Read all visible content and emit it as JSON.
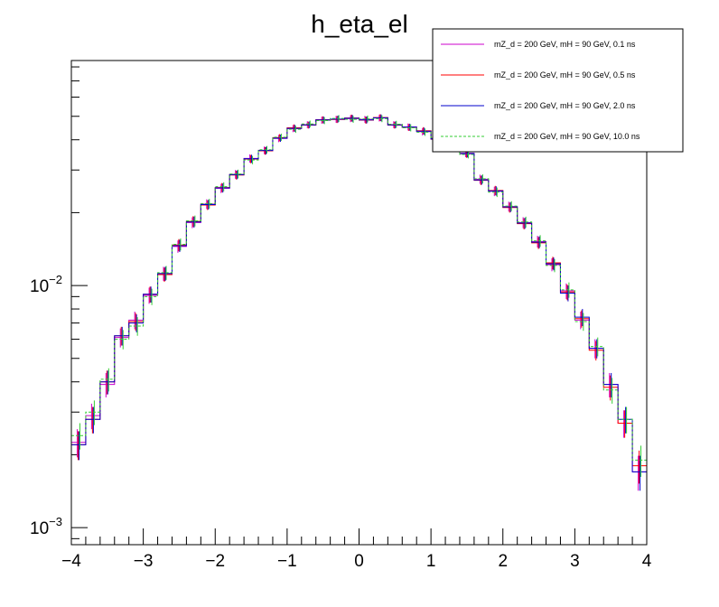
{
  "chart_data": {
    "type": "line",
    "title": "h_eta_el",
    "xlabel": "",
    "ylabel": "",
    "xlim": [
      -4,
      4
    ],
    "ylim": [
      0.00085,
      0.085
    ],
    "y_scale": "log",
    "grid": false,
    "legend_placement": "top-right",
    "x_ticks": [
      {
        "value": -4,
        "label": "−4"
      },
      {
        "value": -3,
        "label": "−3"
      },
      {
        "value": -2,
        "label": "−2"
      },
      {
        "value": -1,
        "label": "−1"
      },
      {
        "value": 0,
        "label": "0"
      },
      {
        "value": 1,
        "label": "1"
      },
      {
        "value": 2,
        "label": "2"
      },
      {
        "value": 3,
        "label": "3"
      },
      {
        "value": 4,
        "label": "4"
      }
    ],
    "y_ticks": [
      {
        "value": 0.01,
        "base": "10",
        "exponent": "−2"
      },
      {
        "value": 0.001,
        "base": "10",
        "exponent": "−3"
      }
    ],
    "bin_edges": [
      -4.0,
      -3.8,
      -3.6,
      -3.4,
      -3.2,
      -3.0,
      -2.8,
      -2.6,
      -2.4,
      -2.2,
      -2.0,
      -1.8,
      -1.6,
      -1.4,
      -1.2,
      -1.0,
      -0.8,
      -0.6,
      -0.4,
      -0.2,
      0.0,
      0.2,
      0.4,
      0.6,
      0.8,
      1.0,
      1.2,
      1.4,
      1.6,
      1.8,
      2.0,
      2.2,
      2.4,
      2.6,
      2.8,
      3.0,
      3.2,
      3.4,
      3.6,
      3.8,
      4.0
    ],
    "series": [
      {
        "name": "mZ_d = 200 GeV, mH = 90 GeV, 0.1 ns",
        "color": "#cc00cc",
        "dashed": false,
        "values": [
          0.00225,
          0.0029,
          0.0039,
          0.0061,
          0.0072,
          0.0091,
          0.0112,
          0.0145,
          0.0182,
          0.0217,
          0.0252,
          0.0288,
          0.0335,
          0.0362,
          0.0405,
          0.0445,
          0.0462,
          0.0482,
          0.0486,
          0.0489,
          0.0486,
          0.0492,
          0.0462,
          0.0452,
          0.0432,
          0.0405,
          0.0378,
          0.0352,
          0.0275,
          0.0245,
          0.0212,
          0.0182,
          0.0152,
          0.0122,
          0.0095,
          0.0072,
          0.0055,
          0.0039,
          0.0027,
          0.0017
        ],
        "errors": [
          0.0003,
          0.00035,
          0.00045,
          0.00055,
          0.0006,
          0.0007,
          0.00075,
          0.00085,
          0.00095,
          0.001,
          0.0011,
          0.0012,
          0.0013,
          0.0013,
          0.0014,
          0.0015,
          0.0015,
          0.0016,
          0.0016,
          0.0016,
          0.0016,
          0.0016,
          0.0015,
          0.0015,
          0.0015,
          0.0014,
          0.0014,
          0.0013,
          0.0012,
          0.0011,
          0.001,
          0.00095,
          0.00085,
          0.00075,
          0.0007,
          0.0006,
          0.0005,
          0.00045,
          0.00035,
          0.00028
        ]
      },
      {
        "name": "mZ_d = 200 GeV, mH = 90 GeV, 0.5 ns",
        "color": "#ff0000",
        "dashed": false,
        "values": [
          0.0022,
          0.0028,
          0.004,
          0.0062,
          0.0071,
          0.0092,
          0.0111,
          0.0147,
          0.0184,
          0.0215,
          0.0254,
          0.0286,
          0.0333,
          0.036,
          0.0408,
          0.0448,
          0.046,
          0.0484,
          0.0485,
          0.0492,
          0.0482,
          0.0494,
          0.046,
          0.045,
          0.0436,
          0.0402,
          0.038,
          0.035,
          0.0272,
          0.0247,
          0.021,
          0.018,
          0.015,
          0.0124,
          0.0094,
          0.0073,
          0.0054,
          0.0038,
          0.0027,
          0.0018
        ],
        "errors": [
          0.0003,
          0.00035,
          0.00045,
          0.00055,
          0.0006,
          0.0007,
          0.00075,
          0.00085,
          0.00095,
          0.001,
          0.0011,
          0.0012,
          0.0013,
          0.0013,
          0.0014,
          0.0015,
          0.0015,
          0.0016,
          0.0016,
          0.0016,
          0.0016,
          0.0016,
          0.0015,
          0.0015,
          0.0015,
          0.0014,
          0.0014,
          0.0013,
          0.0012,
          0.0011,
          0.001,
          0.00095,
          0.00085,
          0.00075,
          0.0007,
          0.0006,
          0.0005,
          0.00045,
          0.00035,
          0.00028
        ]
      },
      {
        "name": "mZ_d = 200 GeV, mH = 90 GeV, 2.0 ns",
        "color": "#0000cc",
        "dashed": false,
        "values": [
          0.0022,
          0.0028,
          0.004,
          0.0062,
          0.007,
          0.0092,
          0.0112,
          0.0146,
          0.0183,
          0.0216,
          0.0253,
          0.0287,
          0.0334,
          0.0361,
          0.0406,
          0.0446,
          0.0461,
          0.0483,
          0.0487,
          0.0491,
          0.0483,
          0.0493,
          0.0461,
          0.0451,
          0.0434,
          0.0403,
          0.0379,
          0.0351,
          0.0273,
          0.0246,
          0.0211,
          0.0181,
          0.0151,
          0.0123,
          0.0093,
          0.0074,
          0.0055,
          0.0039,
          0.0028,
          0.0017
        ],
        "errors": [
          0.0003,
          0.00035,
          0.00045,
          0.00055,
          0.0006,
          0.0007,
          0.00075,
          0.00085,
          0.00095,
          0.001,
          0.0011,
          0.0012,
          0.0013,
          0.0013,
          0.0014,
          0.0015,
          0.0015,
          0.0016,
          0.0016,
          0.0016,
          0.0016,
          0.0016,
          0.0015,
          0.0015,
          0.0015,
          0.0014,
          0.0014,
          0.0013,
          0.0012,
          0.0011,
          0.001,
          0.00095,
          0.00085,
          0.00075,
          0.0007,
          0.0006,
          0.0005,
          0.00045,
          0.00035,
          0.00028
        ]
      },
      {
        "name": "mZ_d = 200 GeV, mH = 90 GeV, 10.0 ns",
        "color": "#33cc33",
        "dashed": true,
        "values": [
          0.0024,
          0.003,
          0.0041,
          0.006,
          0.0068,
          0.009,
          0.0113,
          0.0148,
          0.0185,
          0.0218,
          0.0256,
          0.0289,
          0.033,
          0.0364,
          0.041,
          0.0442,
          0.0465,
          0.048,
          0.049,
          0.0486,
          0.0488,
          0.0489,
          0.0464,
          0.0448,
          0.043,
          0.0408,
          0.0376,
          0.0348,
          0.0276,
          0.0243,
          0.0213,
          0.0183,
          0.0153,
          0.0121,
          0.0096,
          0.0071,
          0.0056,
          0.0037,
          0.0028,
          0.0019
        ],
        "errors": [
          0.0003,
          0.00035,
          0.00045,
          0.00055,
          0.0006,
          0.0007,
          0.00075,
          0.00085,
          0.00095,
          0.001,
          0.0011,
          0.0012,
          0.0013,
          0.0013,
          0.0014,
          0.0015,
          0.0015,
          0.0016,
          0.0016,
          0.0016,
          0.0016,
          0.0016,
          0.0015,
          0.0015,
          0.0015,
          0.0014,
          0.0014,
          0.0013,
          0.0012,
          0.0011,
          0.001,
          0.00095,
          0.00085,
          0.00075,
          0.0007,
          0.0006,
          0.0005,
          0.00045,
          0.00035,
          0.00028
        ]
      }
    ]
  }
}
